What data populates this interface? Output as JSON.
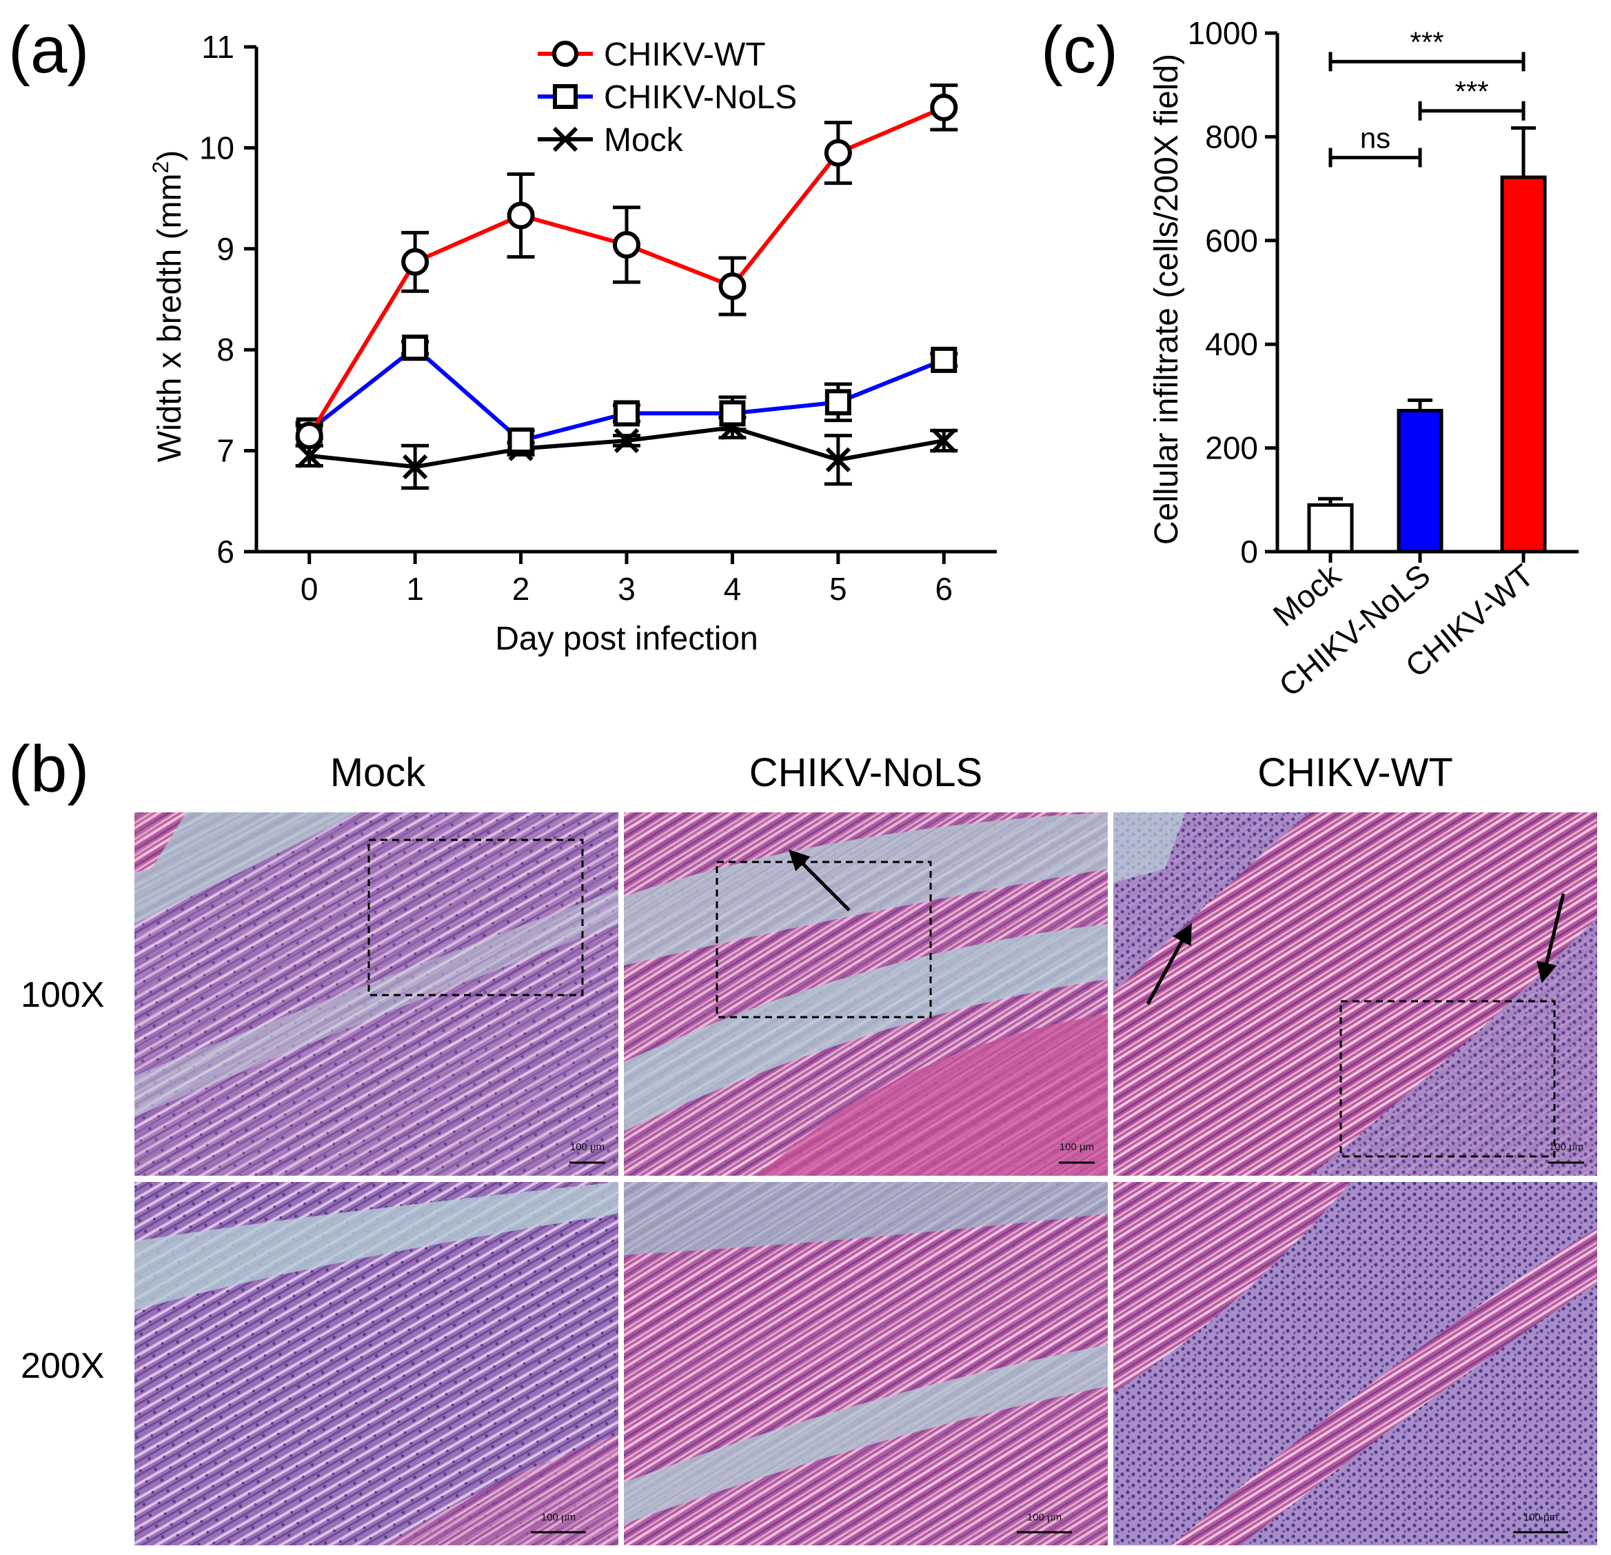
{
  "panel_labels": {
    "a": "(a)",
    "b": "(b)",
    "c": "(c)"
  },
  "colors": {
    "wt": "#ff0000",
    "nols": "#0000ff",
    "mock": "#000000",
    "mock_bar": "#ffffff",
    "muscle_pink": "#c76aa6",
    "muscle_purple": "#8a5fa8",
    "connective_blue": "#a9c6cf"
  },
  "chart_data": [
    {
      "type": "line",
      "panel": "(a)",
      "title": "",
      "xlabel": "Day post infection",
      "ylabel": "Width x bredth (mm",
      "ylabel_sup": "2",
      "ylabel_close": ")",
      "x": [
        0,
        1,
        2,
        3,
        4,
        5,
        6
      ],
      "xlim": [
        -0.5,
        6.5
      ],
      "ylim": [
        6,
        11
      ],
      "xticks": [
        "0",
        "1",
        "2",
        "3",
        "4",
        "5",
        "6"
      ],
      "yticks": [
        "6",
        "7",
        "8",
        "9",
        "10",
        "11"
      ],
      "legend_position": "top-center",
      "series": [
        {
          "name": "CHIKV-WT",
          "marker": "circle",
          "color": "#ff0000",
          "values": [
            7.15,
            8.87,
            9.33,
            9.04,
            8.63,
            9.95,
            10.4
          ],
          "errors": [
            0.1,
            0.29,
            0.41,
            0.37,
            0.28,
            0.3,
            0.22
          ]
        },
        {
          "name": "CHIKV-NoLS",
          "marker": "square",
          "color": "#0000ff",
          "values": [
            7.2,
            8.02,
            7.1,
            7.37,
            7.37,
            7.48,
            7.9
          ],
          "errors": [
            0.08,
            0.06,
            0.1,
            0.08,
            0.16,
            0.18,
            0.06
          ]
        },
        {
          "name": "Mock",
          "marker": "x",
          "color": "#000000",
          "values": [
            6.95,
            6.84,
            7.02,
            7.1,
            7.23,
            6.91,
            7.1
          ],
          "errors": [
            0.1,
            0.21,
            0.06,
            0.05,
            0.1,
            0.24,
            0.1
          ]
        }
      ]
    },
    {
      "type": "bar",
      "panel": "(c)",
      "title": "",
      "xlabel": "",
      "ylabel": "Cellular infiltrate (cells/200X field)",
      "categories": [
        "Mock",
        "CHIKV-NoLS",
        "CHIKV-WT"
      ],
      "values": [
        90,
        272,
        722
      ],
      "errors": [
        12,
        20,
        95
      ],
      "bar_colors": [
        "#ffffff",
        "#0000ff",
        "#ff0000"
      ],
      "ylim": [
        0,
        1000
      ],
      "yticks": [
        "0",
        "200",
        "400",
        "600",
        "800",
        "1000"
      ],
      "annotations": [
        {
          "from": "Mock",
          "to": "CHIKV-WT",
          "text": "***",
          "y": 945
        },
        {
          "from": "CHIKV-NoLS",
          "to": "CHIKV-WT",
          "text": "***",
          "y": 850
        },
        {
          "from": "Mock",
          "to": "CHIKV-NoLS",
          "text": "ns",
          "y": 760
        }
      ]
    }
  ],
  "micrographs": {
    "columns": [
      "Mock",
      "CHIKV-NoLS",
      "CHIKV-WT"
    ],
    "rows": [
      "100X",
      "200X"
    ],
    "scalebar_label": "100 μm"
  }
}
